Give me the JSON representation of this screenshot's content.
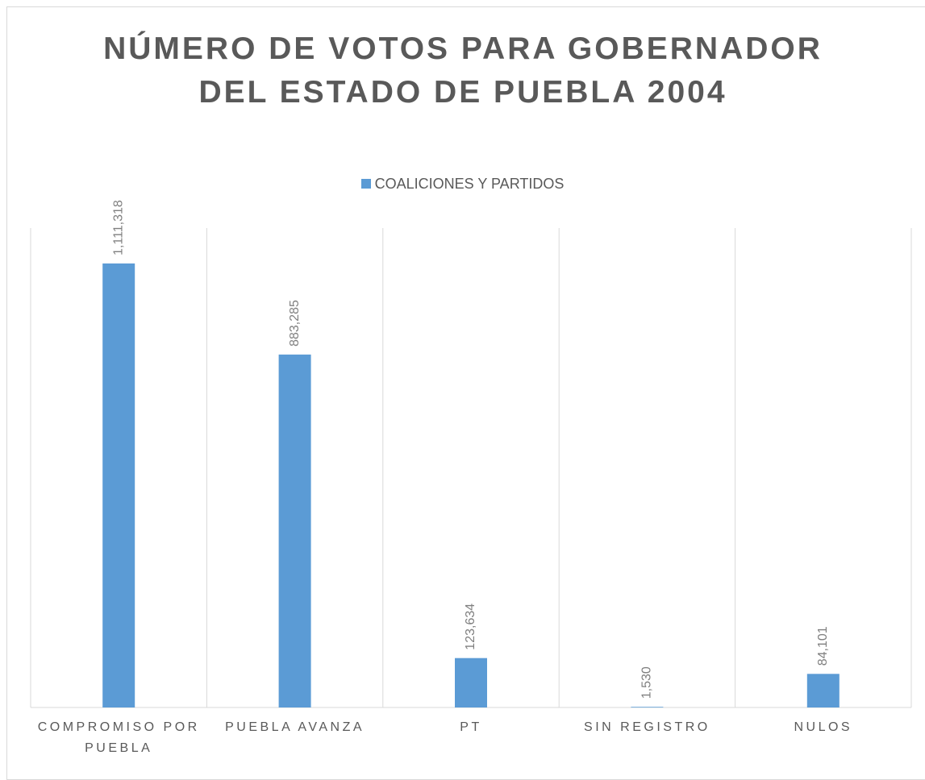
{
  "chart_data": {
    "type": "bar",
    "title": "NÚMERO DE VOTOS PARA GOBERNADOR DEL ESTADO DE PUEBLA 2004",
    "categories": [
      "COMPROMISO POR PUEBLA",
      "PUEBLA AVANZA",
      "PT",
      "SIN REGISTRO",
      "NULOS"
    ],
    "series": [
      {
        "name": "COALICIONES Y PARTIDOS",
        "color": "#5b9bd5",
        "values": [
          1111318,
          883285,
          123634,
          1530,
          84101
        ],
        "value_labels": [
          "1,111,318",
          "883,285",
          "123,634",
          "1,530",
          "84,101"
        ]
      }
    ],
    "ylim": [
      0,
      1200000
    ],
    "legend": "top"
  }
}
